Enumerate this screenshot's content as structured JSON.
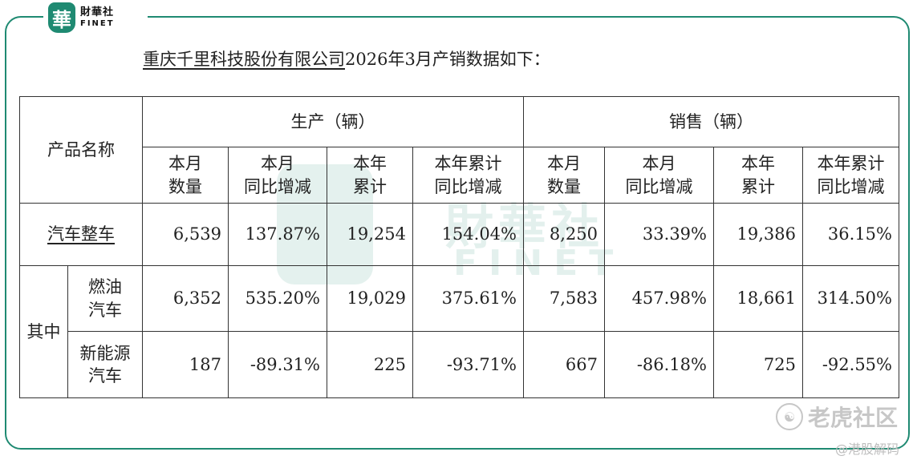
{
  "logo": {
    "seal": "華",
    "cn": "財華社",
    "en": "FINET"
  },
  "heading": {
    "company": "重庆千里科技股份有限公司",
    "rest": "2026年3月产销数据如下："
  },
  "table": {
    "product_header": "产品名称",
    "group_production": "生产（辆）",
    "group_sales": "销售（辆）",
    "sub_headers": [
      [
        "本月",
        "数量"
      ],
      [
        "本月",
        "同比增减"
      ],
      [
        "本年",
        "累计"
      ],
      [
        "本年累计",
        "同比增减"
      ],
      [
        "本月",
        "数量"
      ],
      [
        "本月",
        "同比增减"
      ],
      [
        "本年",
        "累计"
      ],
      [
        "本年累计",
        "同比增减"
      ]
    ],
    "of_which": "其中",
    "rows": [
      {
        "name": "汽车整车",
        "name_lines": [
          "汽车整车"
        ],
        "values": [
          "6,539",
          "137.87%",
          "19,254",
          "154.04%",
          "8,250",
          "33.39%",
          "19,386",
          "36.15%"
        ]
      },
      {
        "name": "燃油汽车",
        "name_lines": [
          "燃油",
          "汽车"
        ],
        "values": [
          "6,352",
          "535.20%",
          "19,029",
          "375.61%",
          "7,583",
          "457.98%",
          "18,661",
          "314.50%"
        ]
      },
      {
        "name": "新能源汽车",
        "name_lines": [
          "新能源",
          "汽车"
        ],
        "values": [
          "187",
          "-89.31%",
          "225",
          "-93.71%",
          "667",
          "-86.18%",
          "725",
          "-92.55%"
        ]
      }
    ]
  },
  "watermark": {
    "cn": "財華社",
    "en": "FINET"
  },
  "footer": {
    "brand": "老虎社区",
    "handle": "@港股解码"
  },
  "colors": {
    "accent": "#1f8a72"
  }
}
